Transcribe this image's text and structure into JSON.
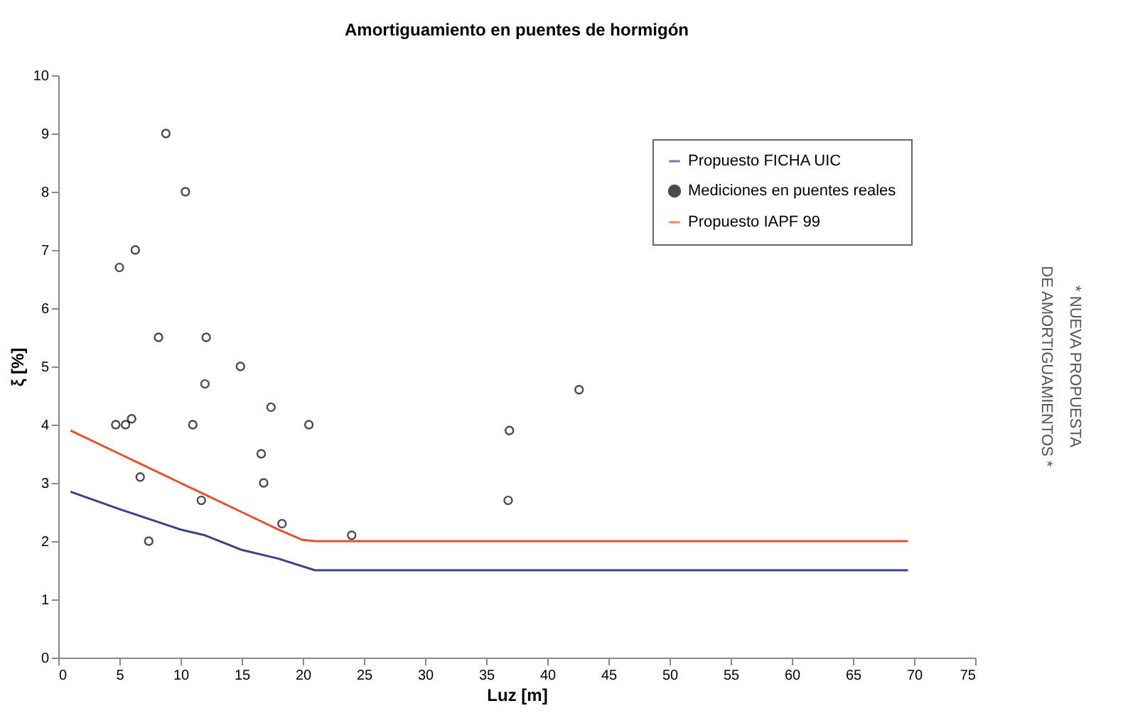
{
  "chart_data": {
    "type": "line",
    "title": "Amortiguamiento en puentes de hormigón",
    "xlabel": "Luz [m]",
    "ylabel": "ξ [%]",
    "xlim": [
      0,
      75
    ],
    "xticks": [
      0,
      5,
      10,
      15,
      20,
      25,
      30,
      35,
      40,
      45,
      50,
      55,
      60,
      65,
      70,
      75
    ],
    "ylim": [
      0,
      10
    ],
    "yticks": [
      0,
      1,
      2,
      3,
      4,
      5,
      6,
      7,
      8,
      9,
      10
    ],
    "grid": false,
    "legend": "top right",
    "annotations": [
      "* NUEVA PROPUESTA\nDE AMORTIGUAMIENTOS *"
    ],
    "series": [
      {
        "name": "Propuesto FICHA UIC",
        "color": "#3f3f8f",
        "marker": "none",
        "line_style": "solid",
        "x": [
          1,
          5,
          10,
          12,
          15,
          18,
          21,
          69.5
        ],
        "values": [
          2.85,
          2.55,
          2.2,
          2.1,
          1.85,
          1.7,
          1.5,
          1.5
        ]
      },
      {
        "name": "Mediciones en puentes reales",
        "type": "scatter",
        "color": "#000000",
        "marker": "circle",
        "x": [
          4.7,
          5.0,
          5.5,
          6.0,
          6.3,
          6.7,
          7.4,
          8.2,
          8.8,
          10.4,
          11.0,
          11.7,
          12.0,
          12.1,
          14.9,
          16.6,
          16.8,
          17.4,
          18.3,
          20.5,
          24.0,
          36.8,
          36.9,
          42.6
        ],
        "values": [
          4.0,
          6.7,
          4.0,
          4.1,
          7.0,
          3.1,
          2.0,
          5.5,
          9.0,
          8.0,
          4.0,
          2.7,
          4.7,
          5.5,
          5.0,
          3.5,
          3.0,
          4.3,
          2.3,
          4.0,
          2.1,
          2.7,
          3.9,
          4.6
        ]
      },
      {
        "name": "Propuesto IAPF 99",
        "color": "#e8502a",
        "marker": "none",
        "line_style": "solid",
        "x": [
          1,
          5,
          7,
          10,
          12,
          15,
          18,
          20,
          21,
          69.5
        ],
        "values": [
          3.9,
          3.5,
          3.3,
          3.0,
          2.8,
          2.5,
          2.2,
          2.02,
          2.0,
          2.0
        ]
      }
    ]
  }
}
